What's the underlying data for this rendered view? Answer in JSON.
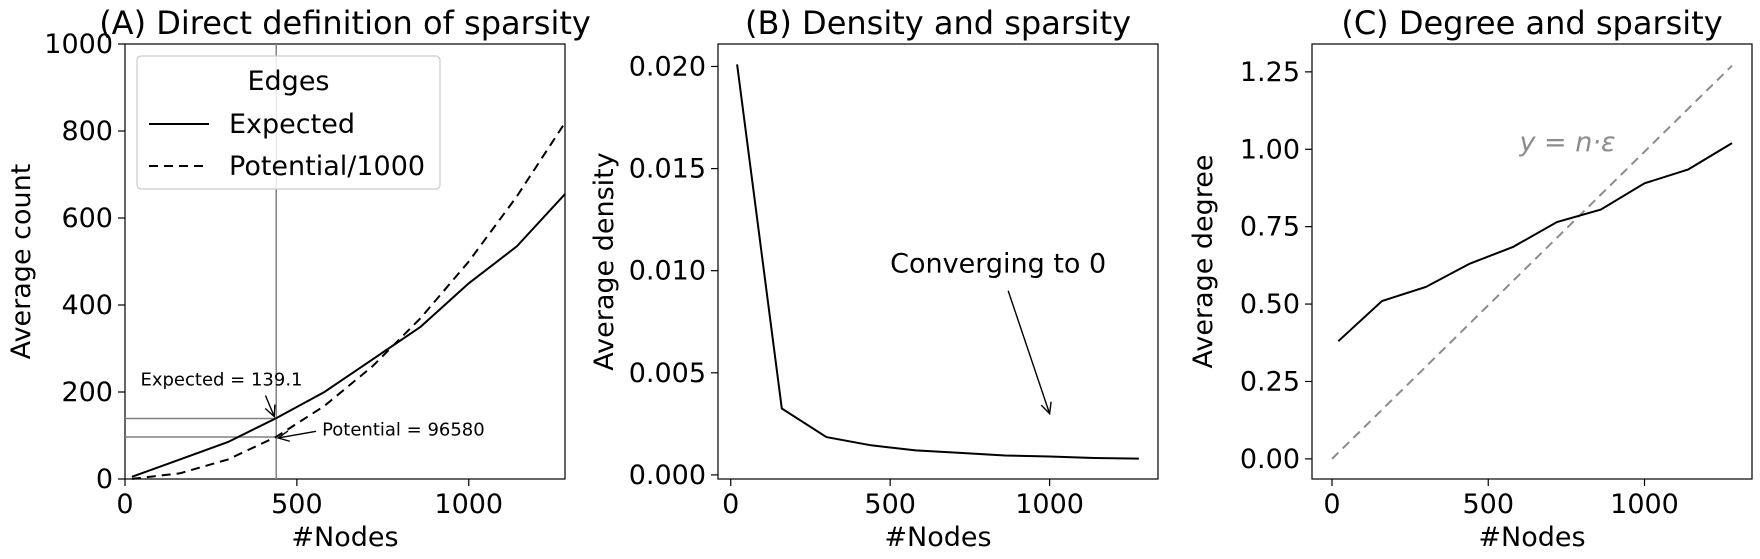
{
  "chart_data": [
    {
      "type": "line",
      "title": "(A) Direct definition of sparsity",
      "xlabel": "#Nodes",
      "ylabel": "Average count",
      "xlim": [
        0,
        1280
      ],
      "ylim": [
        0,
        1000
      ],
      "xticks": [
        0,
        500,
        1000
      ],
      "yticks": [
        0,
        200,
        400,
        600,
        800,
        1000
      ],
      "legend": {
        "title": "Edges",
        "placement": "top-left"
      },
      "series": [
        {
          "name": "Expected",
          "style": "solid",
          "color": "#000000",
          "x": [
            20,
            160,
            300,
            440,
            580,
            720,
            860,
            1000,
            1140,
            1280
          ],
          "y": [
            5,
            45,
            85,
            140,
            200,
            275,
            350,
            450,
            535,
            655
          ]
        },
        {
          "name": "Potential/1000",
          "style": "dashed",
          "color": "#000000",
          "x": [
            20,
            160,
            300,
            440,
            580,
            720,
            860,
            1000,
            1140,
            1280
          ],
          "y": [
            0.2,
            13,
            45,
            97,
            168,
            259,
            370,
            500,
            650,
            819
          ]
        }
      ],
      "reference_lines": {
        "x": 440,
        "y": [
          139.1,
          96.58
        ],
        "color": "#808080"
      },
      "annotations": [
        {
          "text": "Expected = 139.1",
          "x": 440,
          "y": 139.1,
          "text_x": 45,
          "text_y": 215
        },
        {
          "text": "Potential = 96580",
          "x": 440,
          "y": 96.58,
          "text_x": 550,
          "text_y": 105
        }
      ]
    },
    {
      "type": "line",
      "title": "(B) Density and sparsity",
      "xlabel": "#Nodes",
      "ylabel": "Average density",
      "xlim": [
        -40,
        1340
      ],
      "ylim": [
        -0.0002,
        0.0211
      ],
      "xticks": [
        0,
        500,
        1000
      ],
      "yticks": [
        0.0,
        0.005,
        0.01,
        0.015,
        0.02
      ],
      "ytick_labels": [
        "0.000",
        "0.005",
        "0.010",
        "0.015",
        "0.020"
      ],
      "series": [
        {
          "name": "",
          "style": "solid",
          "color": "#000000",
          "x": [
            20,
            160,
            300,
            440,
            580,
            720,
            860,
            1000,
            1140,
            1280
          ],
          "y": [
            0.0201,
            0.00325,
            0.00185,
            0.00145,
            0.0012,
            0.00108,
            0.00095,
            0.0009,
            0.00083,
            0.0008
          ]
        }
      ],
      "annotations": [
        {
          "text": "Converging to 0",
          "x": 1000,
          "y": 0.003,
          "text_x": 500,
          "text_y": 0.0099
        }
      ]
    },
    {
      "type": "line",
      "title": "(C) Degree and sparsity",
      "xlabel": "#Nodes",
      "ylabel": "Average degree",
      "xlim": [
        -64,
        1344
      ],
      "ylim": [
        -0.065,
        1.34
      ],
      "xticks": [
        0,
        500,
        1000
      ],
      "yticks": [
        0.0,
        0.25,
        0.5,
        0.75,
        1.0,
        1.25
      ],
      "ytick_labels": [
        "0.00",
        "0.25",
        "0.50",
        "0.75",
        "1.00",
        "1.25"
      ],
      "series": [
        {
          "name": "",
          "style": "solid",
          "color": "#000000",
          "x": [
            20,
            160,
            300,
            440,
            580,
            720,
            860,
            1000,
            1140,
            1280
          ],
          "y": [
            0.38,
            0.51,
            0.555,
            0.63,
            0.685,
            0.765,
            0.805,
            0.89,
            0.935,
            1.02
          ]
        },
        {
          "name": "y = n·ε",
          "style": "dashed",
          "color": "#8c8c8c",
          "x": [
            0,
            1280
          ],
          "y": [
            0,
            1.27
          ]
        }
      ],
      "annotations": [
        {
          "text": "y = n·ε",
          "x": 600,
          "y": 0.995
        }
      ]
    }
  ]
}
